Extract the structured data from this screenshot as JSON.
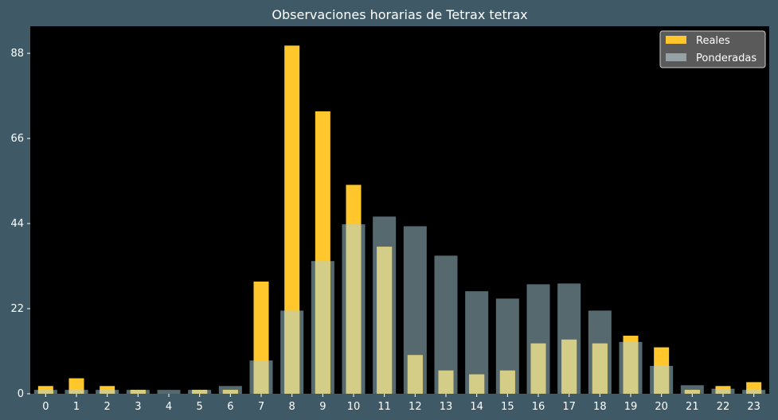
{
  "chart_data": {
    "type": "bar",
    "title": "Observaciones horarias de Tetrax tetrax",
    "xlabel": "",
    "ylabel": "",
    "categories": [
      "0",
      "1",
      "2",
      "3",
      "4",
      "5",
      "6",
      "7",
      "8",
      "9",
      "10",
      "11",
      "12",
      "13",
      "14",
      "15",
      "16",
      "17",
      "18",
      "19",
      "20",
      "21",
      "22",
      "23"
    ],
    "series": [
      {
        "name": "Reales",
        "color": "#ffc72c",
        "values": [
          2,
          4,
          2,
          1,
          0,
          1,
          1,
          29,
          90,
          73,
          54,
          38,
          10,
          6,
          5,
          6,
          13,
          14,
          13,
          15,
          12,
          1,
          2,
          3
        ]
      },
      {
        "name": "Ponderadas",
        "color": "#95a3a6",
        "values": [
          1,
          1,
          1,
          1,
          1,
          1,
          2,
          8.6,
          21.5,
          34.3,
          43.8,
          45.8,
          43.3,
          35.7,
          26.5,
          24.6,
          28.3,
          28.5,
          21.5,
          13.4,
          7.2,
          2.2,
          1.3,
          1
        ]
      }
    ],
    "yticks": [
      0,
      22,
      44,
      66,
      88
    ],
    "ylim": [
      0,
      95
    ],
    "legend_position": "top-right",
    "grid": false,
    "plot_background": "#000000",
    "figure_background": "#3f5a66"
  }
}
